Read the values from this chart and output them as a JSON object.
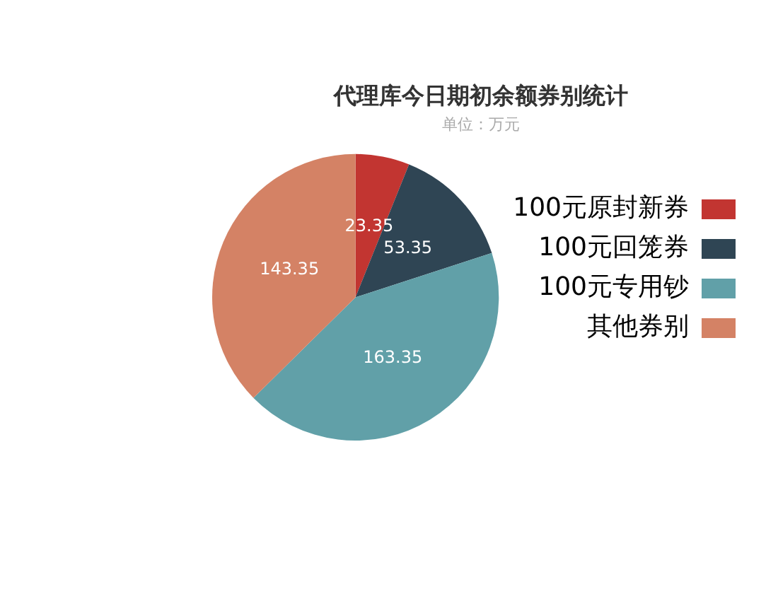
{
  "chart_data": {
    "type": "pie",
    "title": "代理库今日期初余额券别统计",
    "subtitle": "单位：万元",
    "categories": [
      "100元原封新券",
      "100元回笼券",
      "100元专用钞",
      "其他券别"
    ],
    "values": [
      23.35,
      53.35,
      163.35,
      143.35
    ],
    "colors": [
      "#c23531",
      "#2f4554",
      "#61a0a8",
      "#d48265"
    ],
    "data_labels": true,
    "legend": "right"
  }
}
